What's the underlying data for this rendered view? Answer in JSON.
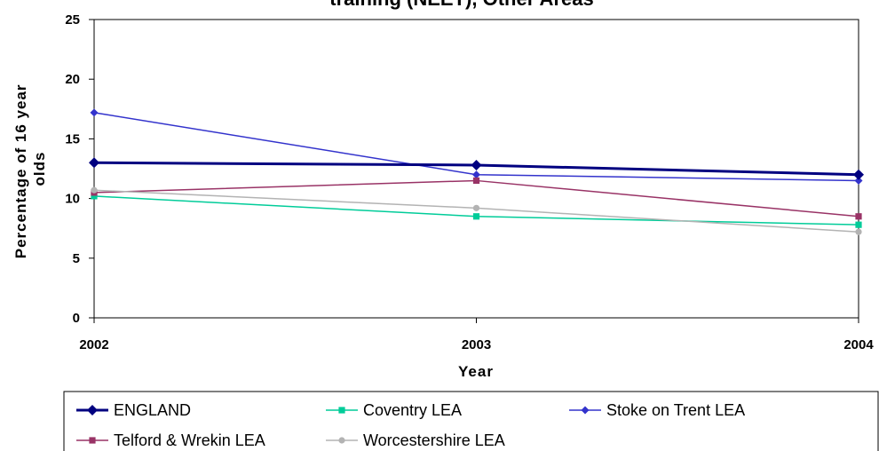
{
  "chart_data": {
    "type": "line",
    "title": "training (NEET), Other Areas",
    "xlabel": "Year",
    "ylabel": "Percentage of 16 year olds",
    "x": [
      "2002",
      "2003",
      "2004"
    ],
    "ylim": [
      0,
      25
    ],
    "yticks": [
      0,
      5,
      10,
      15,
      20,
      25
    ],
    "grid": false,
    "legend": "bottom",
    "series": [
      {
        "name": "ENGLAND",
        "values": [
          13.0,
          12.8,
          12.0
        ],
        "color": "#000080",
        "marker": "diamond",
        "width": 3
      },
      {
        "name": "Coventry LEA",
        "values": [
          10.2,
          8.5,
          7.8
        ],
        "color": "#00CC99",
        "marker": "square",
        "width": 1.5
      },
      {
        "name": "Stoke on Trent LEA",
        "values": [
          17.2,
          12.0,
          11.5
        ],
        "color": "#3333CC",
        "marker": "diamond",
        "width": 1.5
      },
      {
        "name": "Telford & Wrekin LEA",
        "values": [
          10.5,
          11.5,
          8.5
        ],
        "color": "#993366",
        "marker": "square",
        "width": 1.5
      },
      {
        "name": "Worcestershire LEA",
        "values": [
          10.7,
          9.2,
          7.2
        ],
        "color": "#B3B3B3",
        "marker": "circle",
        "width": 1.5
      }
    ]
  }
}
